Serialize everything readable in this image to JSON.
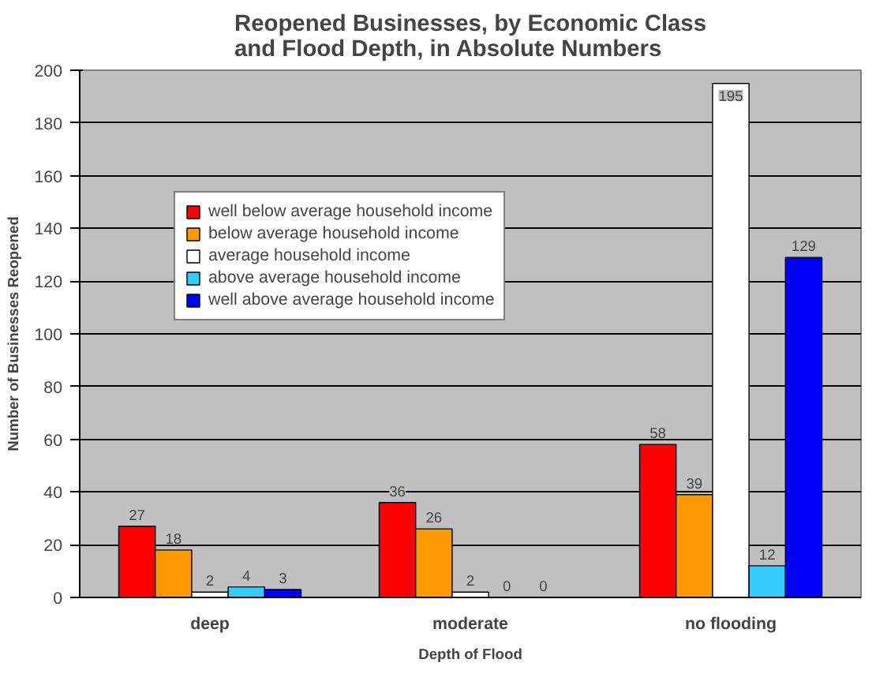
{
  "chart_data": {
    "type": "bar",
    "title": "Reopened Businesses, by Economic Class\nand Flood Depth, in Absolute Numbers",
    "xlabel": "Depth of Flood",
    "ylabel": "Number of Businesses Reopened",
    "categories": [
      "deep",
      "moderate",
      "no flooding"
    ],
    "series": [
      {
        "name": "well below average household income",
        "color": "#ff0000",
        "values": [
          27,
          36,
          58
        ]
      },
      {
        "name": "below average household income",
        "color": "#ff9900",
        "values": [
          18,
          26,
          39
        ]
      },
      {
        "name": "average household income",
        "color": "#ffffff",
        "values": [
          2,
          2,
          195
        ]
      },
      {
        "name": "above average household income",
        "color": "#33ccff",
        "values": [
          4,
          0,
          12
        ]
      },
      {
        "name": "well above average household income",
        "color": "#0000ff",
        "values": [
          3,
          0,
          129
        ]
      }
    ],
    "ylim": [
      0,
      200
    ],
    "yticks": [
      0,
      20,
      40,
      60,
      80,
      100,
      120,
      140,
      160,
      180,
      200
    ],
    "grid": "y",
    "legend": "top left",
    "data_labels": true
  }
}
